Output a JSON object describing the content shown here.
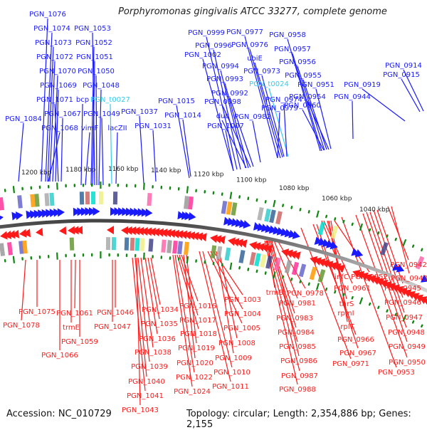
{
  "title": "Porphyromonas gingivalis ATCC 33277, complete genome",
  "footer": {
    "accession": "Accession: NC_010729",
    "summary": "Topology: circular; Length: 2,354,886 bp; Genes: 2,155"
  },
  "colors": {
    "forward": "#1a1aff",
    "reverse": "#ff1a1a",
    "trna": "#33ccee",
    "tick": "#118811",
    "backbone": "#777777",
    "scale_text": "#222222"
  },
  "scale_labels": [
    "1200 kbp",
    "1180 kbp",
    "1160 kbp",
    "1140 kbp",
    "1120 kbp",
    "1100 kbp",
    "1080 kbp",
    "1060 kbp",
    "1040 kbp"
  ],
  "forward_labels": [
    {
      "text": "PGN_1076",
      "type": "cds"
    },
    {
      "text": "PGN_1074",
      "type": "cds"
    },
    {
      "text": "PGN_1073",
      "type": "cds"
    },
    {
      "text": "PGN_1072",
      "type": "cds"
    },
    {
      "text": "PGN_1070",
      "type": "cds"
    },
    {
      "text": "PGN_1069",
      "type": "cds"
    },
    {
      "text": "PGN_1071",
      "type": "cds"
    },
    {
      "text": "PGN_1067",
      "type": "cds"
    },
    {
      "text": "PGN_1068",
      "type": "cds"
    },
    {
      "text": "PGN_1084",
      "type": "cds"
    },
    {
      "text": "PGN_1053",
      "type": "cds"
    },
    {
      "text": "PGN_1052",
      "type": "cds"
    },
    {
      "text": "PGN_1051",
      "type": "cds"
    },
    {
      "text": "PGN_1050",
      "type": "cds"
    },
    {
      "text": "PGN_1048",
      "type": "cds"
    },
    {
      "text": "bcp",
      "type": "cds"
    },
    {
      "text": "PGN_t0027",
      "type": "trna"
    },
    {
      "text": "PGN_1049",
      "type": "cds"
    },
    {
      "text": "vimF",
      "type": "cds"
    },
    {
      "text": "lacZII",
      "type": "cds"
    },
    {
      "text": "PGN_1037",
      "type": "cds"
    },
    {
      "text": "PGN_1031",
      "type": "cds"
    },
    {
      "text": "PGN_1015",
      "type": "cds"
    },
    {
      "text": "PGN_1014",
      "type": "cds"
    },
    {
      "text": "PGN_1007",
      "type": "cds"
    },
    {
      "text": "PGN_0999",
      "type": "cds"
    },
    {
      "text": "PGN_0996",
      "type": "cds"
    },
    {
      "text": "PGN_1002",
      "type": "cds"
    },
    {
      "text": "PGN_0994",
      "type": "cds"
    },
    {
      "text": "PGN_0993",
      "type": "cds"
    },
    {
      "text": "PGN_0992",
      "type": "cds"
    },
    {
      "text": "PGN_0998",
      "type": "cds"
    },
    {
      "text": "dut",
      "type": "cds"
    },
    {
      "text": "PGN_0977",
      "type": "cds"
    },
    {
      "text": "PGN_0976",
      "type": "cds"
    },
    {
      "text": "ubiE",
      "type": "cds"
    },
    {
      "text": "PGN_0973",
      "type": "cds"
    },
    {
      "text": "PGN_t0024",
      "type": "trna"
    },
    {
      "text": "PGN_0974",
      "type": "cds"
    },
    {
      "text": "PGN_0979",
      "type": "cds"
    },
    {
      "text": "PGN_0982",
      "type": "cds"
    },
    {
      "text": "PGN_0958",
      "type": "cds"
    },
    {
      "text": "PGN_0957",
      "type": "cds"
    },
    {
      "text": "PGN_0956",
      "type": "cds"
    },
    {
      "text": "PGN_0955",
      "type": "cds"
    },
    {
      "text": "PGN_0951",
      "type": "cds"
    },
    {
      "text": "PGN_0954",
      "type": "cds"
    },
    {
      "text": "PGN_0960",
      "type": "cds"
    },
    {
      "text": "PGN_0944",
      "type": "cds"
    },
    {
      "text": "PGN_0919",
      "type": "cds"
    },
    {
      "text": "PGN_0915",
      "type": "cds"
    },
    {
      "text": "PGN_0914",
      "type": "cds"
    }
  ],
  "reverse_labels": [
    {
      "text": "PGN_1075"
    },
    {
      "text": "PGN_1078"
    },
    {
      "text": "PGN_1061"
    },
    {
      "text": "trmE"
    },
    {
      "text": "PGN_1059"
    },
    {
      "text": "PGN_1066"
    },
    {
      "text": "PGN_1046"
    },
    {
      "text": "PGN_1047"
    },
    {
      "text": "PGN_1034"
    },
    {
      "text": "PGN_1035"
    },
    {
      "text": "PGN_1036"
    },
    {
      "text": "PGN_1038"
    },
    {
      "text": "PGN_1039"
    },
    {
      "text": "PGN_1040"
    },
    {
      "text": "PGN_1041"
    },
    {
      "text": "PGN_1043"
    },
    {
      "text": "PGN_1016"
    },
    {
      "text": "PGN_1017"
    },
    {
      "text": "PGN_1018"
    },
    {
      "text": "PGN_1019"
    },
    {
      "text": "PGN_1020"
    },
    {
      "text": "PGN_1022"
    },
    {
      "text": "PGN_1024"
    },
    {
      "text": "PGN_1003"
    },
    {
      "text": "PGN_1004"
    },
    {
      "text": "PGN_1005"
    },
    {
      "text": "PGN_1008"
    },
    {
      "text": "PGN_1009"
    },
    {
      "text": "PGN_1010"
    },
    {
      "text": "PGN_1011"
    },
    {
      "text": "trmB"
    },
    {
      "text": "PGN_0978"
    },
    {
      "text": "PGN_0981"
    },
    {
      "text": "PGN_0983"
    },
    {
      "text": "PGN_0984"
    },
    {
      "text": "PGN_0985"
    },
    {
      "text": "PGN_0986"
    },
    {
      "text": "PGN_0987"
    },
    {
      "text": "PGN_0988"
    },
    {
      "text": "infC"
    },
    {
      "text": "PGN_0952"
    },
    {
      "text": "PGN_0961"
    },
    {
      "text": "thrS"
    },
    {
      "text": "rpmI"
    },
    {
      "text": "rplT"
    },
    {
      "text": "PGN_0966"
    },
    {
      "text": "PGN_0967"
    },
    {
      "text": "PGN_0971"
    },
    {
      "text": "PGN_0942"
    },
    {
      "text": "PGN_0943"
    },
    {
      "text": "PGN_0945"
    },
    {
      "text": "PGN_0946"
    },
    {
      "text": "PGN_0947"
    },
    {
      "text": "PGN_0948"
    },
    {
      "text": "PGN_0949"
    },
    {
      "text": "PGN_0950"
    },
    {
      "text": "PGN_0953"
    }
  ]
}
